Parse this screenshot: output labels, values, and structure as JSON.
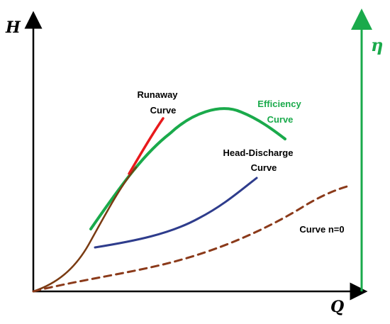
{
  "axes": {
    "y_left_label": "H",
    "x_label": "Q",
    "y_right_label": "η"
  },
  "curves": {
    "runaway": {
      "label_line1": "Runaway",
      "label_line2": "Curve",
      "color": "#e8191c"
    },
    "efficiency": {
      "label_line1": "Efficiency",
      "label_line2": "Curve",
      "color": "#1aaa4b"
    },
    "head_discharge": {
      "label_line1": "Head-Discharge",
      "label_line2": "Curve",
      "color": "#2e3c8c"
    },
    "n_zero": {
      "label": "Curve n=0",
      "color": "#8b3a1a"
    }
  },
  "colors": {
    "axis": "#000000",
    "eta_axis": "#1aaa4b",
    "outer_brown_curve": "#7a3b12"
  }
}
